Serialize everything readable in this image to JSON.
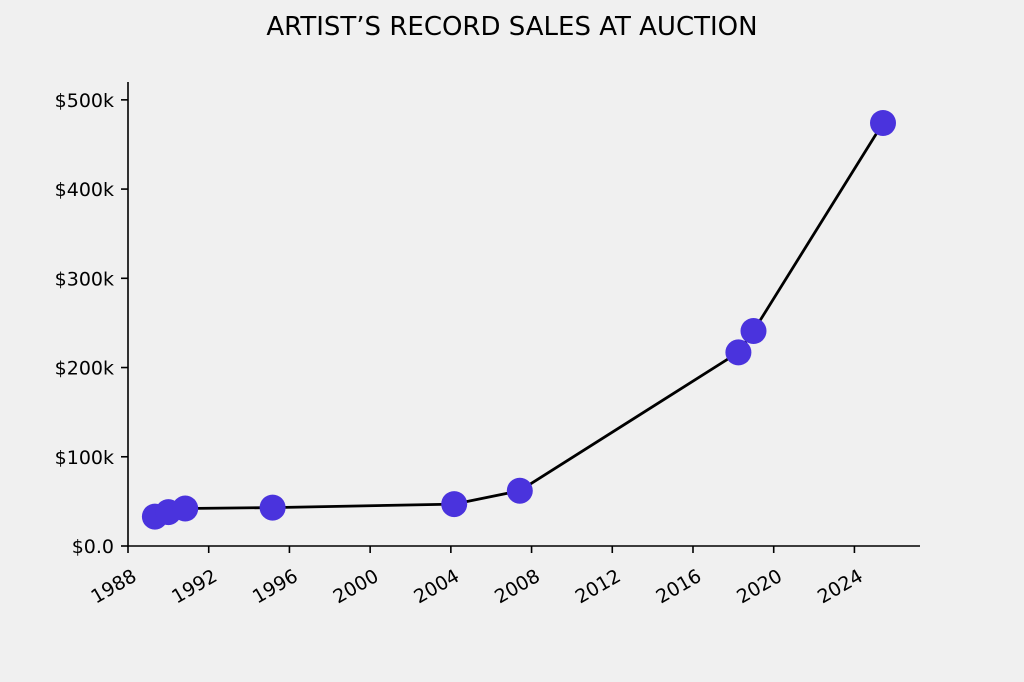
{
  "chart_data": {
    "type": "line",
    "title": "ARTIST’S RECORD SALES AT AUCTION",
    "xlabel": "",
    "ylabel": "",
    "x_axis": "date",
    "x": [
      "1989-05",
      "1990-01",
      "1990-11",
      "1995-03",
      "2004-03",
      "2007-06",
      "2018-04",
      "2019-01",
      "2025-06"
    ],
    "values": [
      33000,
      38000,
      42000,
      43000,
      47000,
      62000,
      217000,
      241000,
      474000
    ],
    "xlim": [
      "1988-01",
      "2027-04"
    ],
    "ylim": [
      0,
      520000
    ],
    "x_ticks": [
      "1988",
      "1992",
      "1996",
      "2000",
      "2004",
      "2008",
      "2012",
      "2016",
      "2020",
      "2024"
    ],
    "y_ticks": [
      0,
      100000,
      200000,
      300000,
      400000,
      500000
    ],
    "y_tick_labels": [
      "$0.0",
      "$100k",
      "$200k",
      "$300k",
      "$400k",
      "$500k"
    ],
    "marker_color": "#4a33dd",
    "line_color": "#000000",
    "background": "#f0f0f0",
    "grid": false,
    "legend": "none"
  }
}
